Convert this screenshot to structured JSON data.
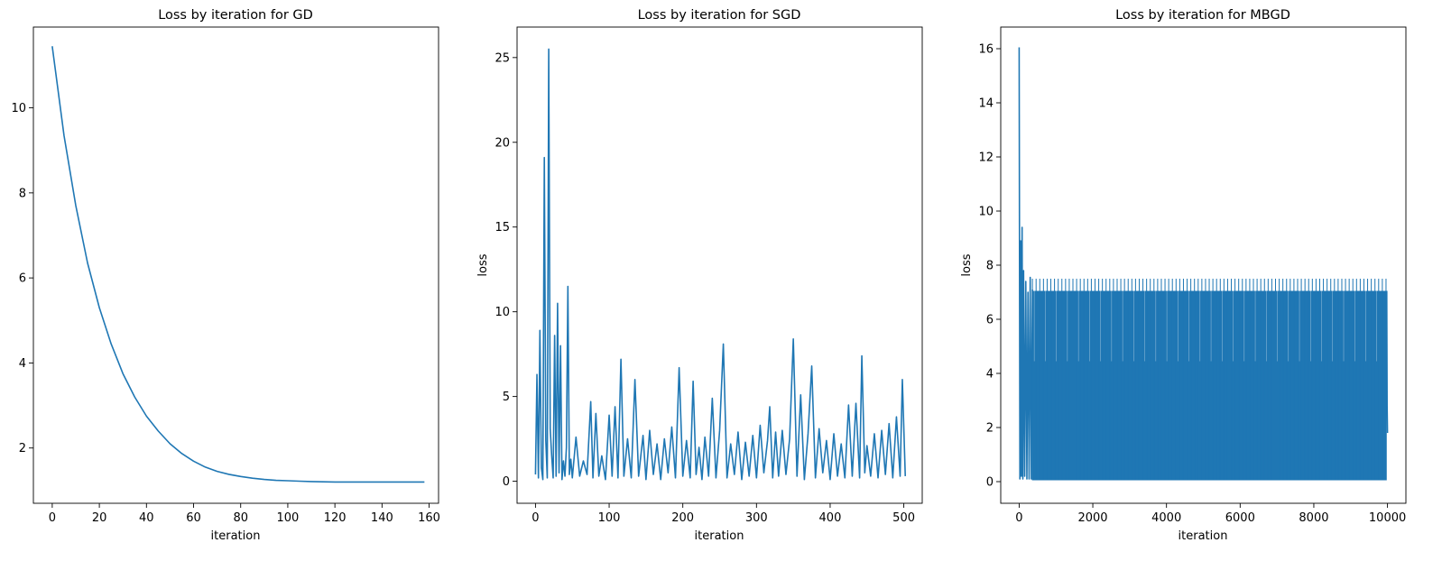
{
  "colors": {
    "line": "#1f77b4",
    "axis": "#000000",
    "background": "#ffffff"
  },
  "chart_data": [
    {
      "type": "line",
      "title": "Loss by iteration for GD",
      "xlabel": "iteration",
      "ylabel": "",
      "xlim": [
        -8,
        164
      ],
      "ylim": [
        0.7,
        11.9
      ],
      "xticks": [
        0,
        20,
        40,
        60,
        80,
        100,
        120,
        140,
        160
      ],
      "yticks": [
        2,
        4,
        6,
        8,
        10
      ],
      "grid": false,
      "series": [
        {
          "x": [
            0,
            5,
            10,
            15,
            20,
            25,
            30,
            35,
            40,
            45,
            50,
            55,
            60,
            65,
            70,
            75,
            80,
            85,
            90,
            95,
            100,
            105,
            110,
            115,
            120,
            125,
            130,
            135,
            140,
            145,
            150,
            155,
            158
          ],
          "values": [
            11.45,
            9.35,
            7.7,
            6.35,
            5.3,
            4.45,
            3.75,
            3.2,
            2.75,
            2.4,
            2.1,
            1.87,
            1.69,
            1.55,
            1.45,
            1.38,
            1.33,
            1.29,
            1.26,
            1.24,
            1.23,
            1.22,
            1.21,
            1.205,
            1.2,
            1.2,
            1.2,
            1.2,
            1.2,
            1.2,
            1.2,
            1.2,
            1.2
          ]
        }
      ]
    },
    {
      "type": "line",
      "title": "Loss by iteration for SGD",
      "xlabel": "iteration",
      "ylabel": "loss",
      "xlim": [
        -25,
        525
      ],
      "ylim": [
        -1.3,
        26.8
      ],
      "xticks": [
        0,
        100,
        200,
        300,
        400,
        500
      ],
      "yticks": [
        0,
        5,
        10,
        15,
        20,
        25
      ],
      "grid": false,
      "series": [
        {
          "x": [
            0,
            2,
            4,
            6,
            8,
            10,
            12,
            14,
            16,
            18,
            20,
            22,
            24,
            26,
            28,
            30,
            32,
            34,
            36,
            38,
            40,
            42,
            44,
            46,
            48,
            50,
            55,
            60,
            65,
            70,
            75,
            78,
            82,
            86,
            90,
            95,
            100,
            104,
            108,
            112,
            116,
            120,
            125,
            130,
            135,
            140,
            146,
            150,
            155,
            160,
            165,
            170,
            175,
            180,
            185,
            190,
            195,
            200,
            205,
            210,
            214,
            218,
            222,
            226,
            230,
            235,
            240,
            245,
            250,
            255,
            260,
            265,
            270,
            275,
            280,
            285,
            290,
            295,
            300,
            305,
            310,
            315,
            318,
            322,
            326,
            330,
            335,
            340,
            345,
            350,
            355,
            360,
            365,
            370,
            375,
            380,
            385,
            390,
            395,
            400,
            405,
            410,
            415,
            420,
            425,
            430,
            435,
            440,
            443,
            447,
            450,
            455,
            460,
            465,
            470,
            475,
            480,
            485,
            490,
            495,
            498,
            502
          ],
          "values": [
            0.4,
            6.3,
            0.2,
            8.9,
            0.8,
            0.1,
            19.1,
            2.4,
            0.2,
            25.5,
            3.1,
            1.5,
            0.2,
            8.6,
            0.3,
            10.5,
            0.5,
            8.0,
            0.1,
            1.2,
            0.3,
            2.0,
            11.5,
            0.4,
            1.3,
            0.2,
            2.6,
            0.3,
            1.2,
            0.4,
            4.7,
            0.2,
            4.0,
            0.3,
            1.5,
            0.1,
            3.9,
            0.3,
            4.4,
            0.2,
            7.2,
            0.3,
            2.5,
            0.2,
            6.0,
            0.3,
            2.7,
            0.1,
            3.0,
            0.4,
            2.2,
            0.1,
            2.5,
            0.5,
            3.2,
            0.2,
            6.7,
            0.3,
            2.4,
            0.2,
            5.9,
            0.4,
            2.0,
            0.1,
            2.6,
            0.3,
            4.9,
            0.2,
            3.0,
            8.1,
            0.2,
            2.2,
            0.4,
            2.9,
            0.1,
            2.3,
            0.3,
            2.7,
            0.2,
            3.3,
            0.5,
            2.4,
            4.4,
            0.2,
            2.9,
            0.3,
            3.0,
            0.4,
            2.5,
            8.4,
            0.3,
            5.1,
            0.1,
            2.8,
            6.8,
            0.2,
            3.1,
            0.5,
            2.4,
            0.1,
            2.8,
            0.3,
            2.2,
            0.2,
            4.5,
            0.3,
            4.6,
            0.2,
            7.4,
            0.5,
            2.1,
            0.3,
            2.8,
            0.2,
            3.0,
            0.4,
            3.4,
            0.2,
            3.8,
            0.3,
            6.0,
            0.3
          ]
        }
      ]
    },
    {
      "type": "line",
      "title": "Loss by iteration for MBGD",
      "xlabel": "iteration",
      "ylabel": "loss",
      "xlim": [
        -500,
        10500
      ],
      "ylim": [
        -0.8,
        16.8
      ],
      "xticks": [
        0,
        2000,
        4000,
        6000,
        8000,
        10000
      ],
      "yticks": [
        0,
        2,
        4,
        6,
        8,
        10,
        12,
        14,
        16
      ],
      "grid": false,
      "series": [
        {
          "x": [
            0,
            20,
            40,
            60,
            80,
            100,
            120,
            150,
            180,
            210,
            240,
            270,
            300,
            330,
            360
          ],
          "values": [
            16.05,
            0.1,
            8.9,
            0.2,
            9.4,
            0.1,
            7.8,
            0.2,
            7.4,
            0.1,
            7.0,
            0.1,
            7.55,
            0.1,
            7.1
          ]
        }
      ],
      "oscillation": {
        "x_start": 360,
        "x_end": 9980,
        "period": 100,
        "min": 0.05,
        "peak_high": 7.5,
        "peak_low": 7.05,
        "mid_level": 4.45
      },
      "tail": {
        "x": [
          9980,
          9990,
          10000
        ],
        "values": [
          7.05,
          2.8,
          1.8
        ]
      }
    }
  ]
}
